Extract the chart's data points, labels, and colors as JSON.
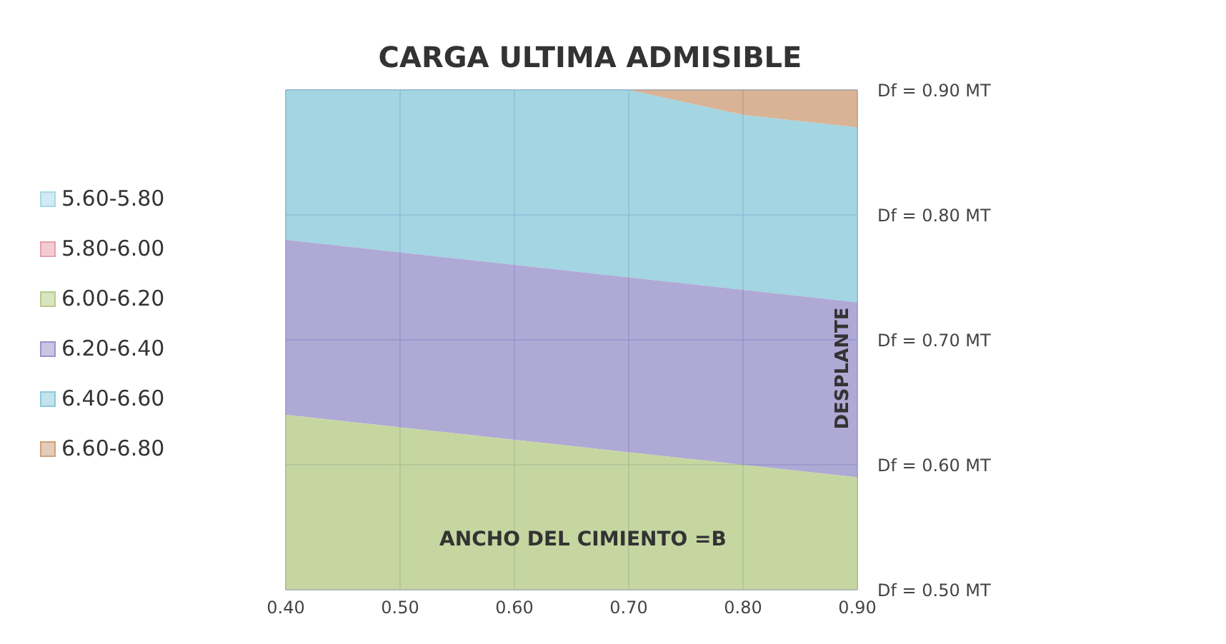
{
  "chart_data": {
    "type": "area",
    "title": "CARGA ULTIMA ADMISIBLE",
    "xlabel": "ANCHO DEL CIMIENTO =B",
    "ylabel": "DESPLANTE",
    "x": [
      0.4,
      0.5,
      0.6,
      0.7,
      0.8,
      0.9
    ],
    "xlim": [
      0.4,
      0.9
    ],
    "xticks": [
      {
        "value": 0.4,
        "label": "0.40"
      },
      {
        "value": 0.5,
        "label": "0.50"
      },
      {
        "value": 0.6,
        "label": "0.60"
      },
      {
        "value": 0.7,
        "label": "0.70"
      },
      {
        "value": 0.8,
        "label": "0.80"
      },
      {
        "value": 0.9,
        "label": "0.90"
      }
    ],
    "ylim": [
      0.5,
      0.9
    ],
    "yticks": [
      {
        "value": 0.5,
        "label": "Df = 0.50 MT"
      },
      {
        "value": 0.6,
        "label": "Df = 0.60 MT"
      },
      {
        "value": 0.7,
        "label": "Df = 0.70 MT"
      },
      {
        "value": 0.8,
        "label": "Df = 0.80 MT"
      },
      {
        "value": 0.9,
        "label": "Df = 0.90 MT"
      }
    ],
    "grid": true,
    "legend": "left",
    "series": [
      {
        "name": "5.60-5.80",
        "color": "#a9d8e8",
        "values": [
          null,
          null,
          null,
          null,
          null,
          null
        ]
      },
      {
        "name": "5.80-6.00",
        "color": "#e8a0aa",
        "values": [
          null,
          null,
          null,
          null,
          null,
          null
        ]
      },
      {
        "name": "6.00-6.20",
        "color": "#b8cc8a",
        "values": [
          0.64,
          0.63,
          0.62,
          0.61,
          0.6,
          0.59
        ]
      },
      {
        "name": "6.20-6.40",
        "color": "#9b93cc",
        "values": [
          0.78,
          0.77,
          0.76,
          0.75,
          0.74,
          0.73
        ]
      },
      {
        "name": "6.40-6.60",
        "color": "#8ccbdb",
        "values": [
          0.9,
          0.9,
          0.9,
          0.9,
          0.88,
          0.87
        ]
      },
      {
        "name": "6.60-6.80",
        "color": "#cfa07a",
        "values": [
          null,
          null,
          null,
          0.9,
          0.9,
          0.9
        ]
      }
    ]
  }
}
